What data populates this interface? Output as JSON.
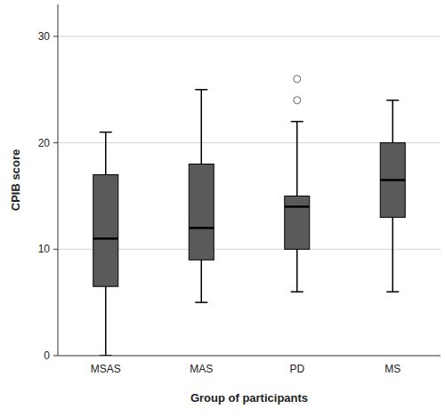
{
  "chart_data": {
    "type": "box",
    "x_label": "Group of participants",
    "y_label": "CPIB score",
    "categories": [
      "MSAS",
      "MAS",
      "PD",
      "MS"
    ],
    "min": [
      0,
      5,
      6,
      6
    ],
    "q1": [
      6.5,
      9,
      10,
      13
    ],
    "median": [
      11,
      12,
      14,
      16.5
    ],
    "q3": [
      17,
      18,
      15,
      20
    ],
    "max": [
      21,
      25,
      22,
      24
    ],
    "outliers": [
      [],
      [],
      [
        24,
        26
      ],
      []
    ],
    "color": "#5a5a5a",
    "ylim": [
      0,
      33
    ],
    "yticks": [
      0,
      10,
      20,
      30
    ],
    "grid": true
  }
}
